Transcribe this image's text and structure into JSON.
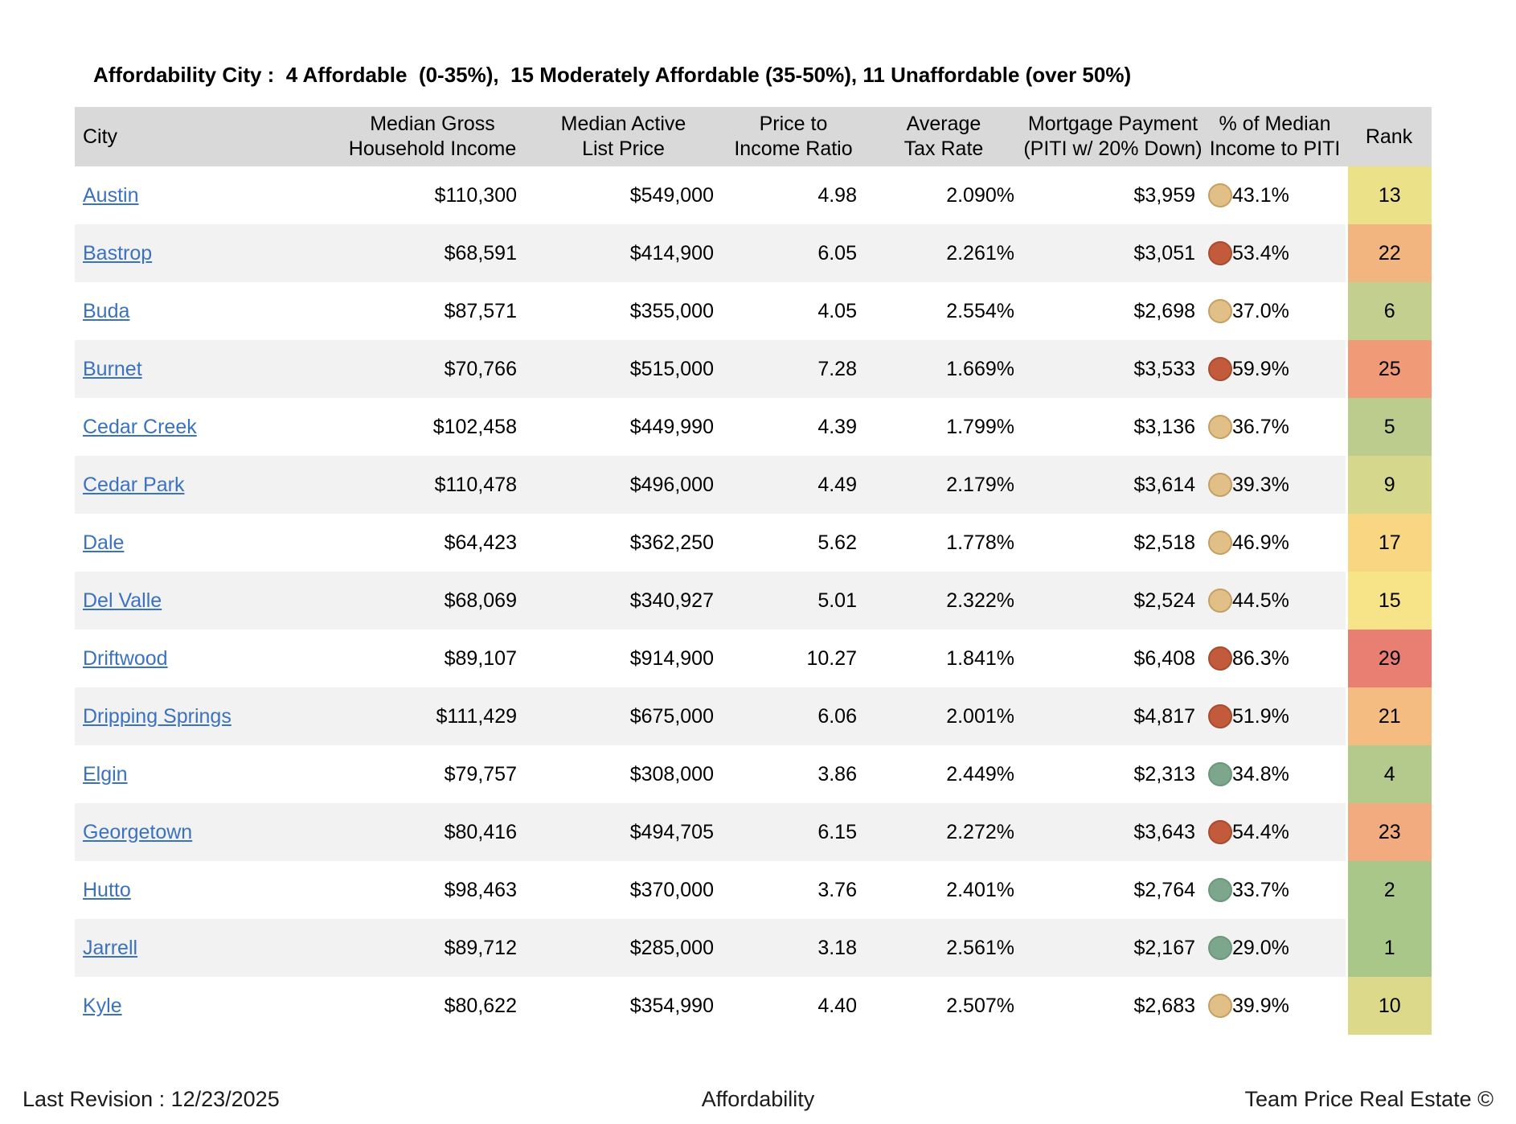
{
  "title": "Affordability City :  4 Affordable  (0-35%),  15 Moderately Affordable (35-50%), 11 Unaffordable (over 50%)",
  "table": {
    "headers": {
      "city": "City",
      "income": [
        "Median Gross",
        "Household Income"
      ],
      "list_price": [
        "Median Active",
        "List Price"
      ],
      "ratio": [
        "Price to",
        "Income Ratio"
      ],
      "tax": [
        "Average",
        "Tax Rate"
      ],
      "payment": [
        "Mortgage Payment",
        "(PITI w/ 20% Down)"
      ],
      "piti_pct": [
        "% of Median",
        "Income to PITI"
      ],
      "rank": "Rank"
    },
    "rows": [
      {
        "city": "Austin",
        "income": "$110,300",
        "list_price": "$549,000",
        "ratio": "4.98",
        "tax": "2.090%",
        "payment": "$3,959",
        "affordability": "moderate",
        "pct": "43.1%",
        "rank": "13",
        "rank_color": "#eae188"
      },
      {
        "city": "Bastrop",
        "income": "$68,591",
        "list_price": "$414,900",
        "ratio": "6.05",
        "tax": "2.261%",
        "payment": "$3,051",
        "affordability": "unaffordable",
        "pct": "53.4%",
        "rank": "22",
        "rank_color": "#f3b57f"
      },
      {
        "city": "Buda",
        "income": "$87,571",
        "list_price": "$355,000",
        "ratio": "4.05",
        "tax": "2.554%",
        "payment": "$2,698",
        "affordability": "moderate",
        "pct": "37.0%",
        "rank": "6",
        "rank_color": "#c2cf8e"
      },
      {
        "city": "Burnet",
        "income": "$70,766",
        "list_price": "$515,000",
        "ratio": "7.28",
        "tax": "1.669%",
        "payment": "$3,533",
        "affordability": "unaffordable",
        "pct": "59.9%",
        "rank": "25",
        "rank_color": "#f09a77"
      },
      {
        "city": "Cedar Creek",
        "income": "$102,458",
        "list_price": "$449,990",
        "ratio": "4.39",
        "tax": "1.799%",
        "payment": "$3,136",
        "affordability": "moderate",
        "pct": "36.7%",
        "rank": "5",
        "rank_color": "#bccc8d"
      },
      {
        "city": "Cedar Park",
        "income": "$110,478",
        "list_price": "$496,000",
        "ratio": "4.49",
        "tax": "2.179%",
        "payment": "$3,614",
        "affordability": "moderate",
        "pct": "39.3%",
        "rank": "9",
        "rank_color": "#d4d78c"
      },
      {
        "city": "Dale",
        "income": "$64,423",
        "list_price": "$362,250",
        "ratio": "5.62",
        "tax": "1.778%",
        "payment": "$2,518",
        "affordability": "moderate",
        "pct": "46.9%",
        "rank": "17",
        "rank_color": "#f8d682"
      },
      {
        "city": "Del Valle",
        "income": "$68,069",
        "list_price": "$340,927",
        "ratio": "5.01",
        "tax": "2.322%",
        "payment": "$2,524",
        "affordability": "moderate",
        "pct": "44.5%",
        "rank": "15",
        "rank_color": "#f7e488"
      },
      {
        "city": "Driftwood",
        "income": "$89,107",
        "list_price": "$914,900",
        "ratio": "10.27",
        "tax": "1.841%",
        "payment": "$6,408",
        "affordability": "unaffordable",
        "pct": "86.3%",
        "rank": "29",
        "rank_color": "#e97e72"
      },
      {
        "city": "Dripping Springs",
        "income": "$111,429",
        "list_price": "$675,000",
        "ratio": "6.06",
        "tax": "2.001%",
        "payment": "$4,817",
        "affordability": "unaffordable",
        "pct": "51.9%",
        "rank": "21",
        "rank_color": "#f4bc80"
      },
      {
        "city": "Elgin",
        "income": "$79,757",
        "list_price": "$308,000",
        "ratio": "3.86",
        "tax": "2.449%",
        "payment": "$2,313",
        "affordability": "affordable",
        "pct": "34.8%",
        "rank": "4",
        "rank_color": "#b4ca8c"
      },
      {
        "city": "Georgetown",
        "income": "$80,416",
        "list_price": "$494,705",
        "ratio": "6.15",
        "tax": "2.272%",
        "payment": "$3,643",
        "affordability": "unaffordable",
        "pct": "54.4%",
        "rank": "23",
        "rank_color": "#f2ab7e"
      },
      {
        "city": "Hutto",
        "income": "$98,463",
        "list_price": "$370,000",
        "ratio": "3.76",
        "tax": "2.401%",
        "payment": "$2,764",
        "affordability": "affordable",
        "pct": "33.7%",
        "rank": "2",
        "rank_color": "#a9c789"
      },
      {
        "city": "Jarrell",
        "income": "$89,712",
        "list_price": "$285,000",
        "ratio": "3.18",
        "tax": "2.561%",
        "payment": "$2,167",
        "affordability": "affordable",
        "pct": "29.0%",
        "rank": "1",
        "rank_color": "#a9c789"
      },
      {
        "city": "Kyle",
        "income": "$80,622",
        "list_price": "$354,990",
        "ratio": "4.40",
        "tax": "2.507%",
        "payment": "$2,683",
        "affordability": "moderate",
        "pct": "39.9%",
        "rank": "10",
        "rank_color": "#dcda8a"
      }
    ]
  },
  "dot_colors": {
    "affordable": {
      "fill": "#7da78c",
      "border": "#6d977c"
    },
    "moderate": {
      "fill": "#e2bf86",
      "border": "#c3a063"
    },
    "unaffordable": {
      "fill": "#c25a3c",
      "border": "#a84b31"
    }
  },
  "header_bg": "#d9d9d9",
  "stripe_bg": "#f2f2f2",
  "footer": {
    "left": "Last Revision : 12/23/2025",
    "center": "Affordability",
    "right": "Team Price Real Estate ©"
  }
}
